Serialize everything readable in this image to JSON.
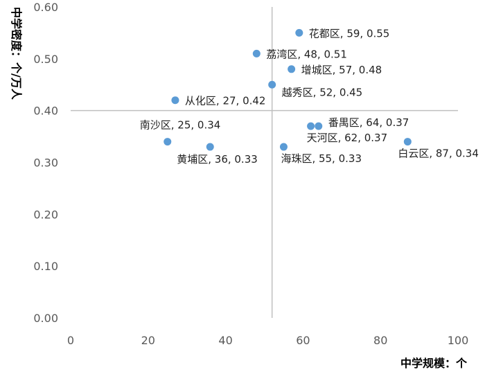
{
  "chart_data": {
    "type": "scatter",
    "xlabel": "中学规模：个",
    "ylabel": "中学密度：个/万人",
    "xlim": [
      0,
      100
    ],
    "ylim": [
      0,
      0.6
    ],
    "x_ticks": [
      "0",
      "20",
      "40",
      "60",
      "80",
      "100"
    ],
    "y_ticks": [
      "0.00",
      "0.10",
      "0.20",
      "0.30",
      "0.40",
      "0.50",
      "0.60"
    ],
    "grid": false,
    "reference_lines": {
      "x": 52,
      "y": 0.4
    },
    "colors": {
      "point": "#5b9bd5",
      "reference_line": "#bfbfbf"
    },
    "points": [
      {
        "name": "花都区",
        "x": 59,
        "y": 0.55,
        "label": "花都区, 59, 0.55"
      },
      {
        "name": "荔湾区",
        "x": 48,
        "y": 0.51,
        "label": "荔湾区, 48, 0.51"
      },
      {
        "name": "增城区",
        "x": 57,
        "y": 0.48,
        "label": "增城区, 57, 0.48"
      },
      {
        "name": "越秀区",
        "x": 52,
        "y": 0.45,
        "label": "越秀区, 52, 0.45"
      },
      {
        "name": "从化区",
        "x": 27,
        "y": 0.42,
        "label": "从化区, 27, 0.42"
      },
      {
        "name": "番禺区",
        "x": 64,
        "y": 0.37,
        "label": "番禺区, 64, 0.37"
      },
      {
        "name": "天河区",
        "x": 62,
        "y": 0.37,
        "label": "天河区, 62, 0.37"
      },
      {
        "name": "南沙区",
        "x": 25,
        "y": 0.34,
        "label": "南沙区, 25, 0.34"
      },
      {
        "name": "白云区",
        "x": 87,
        "y": 0.34,
        "label": "白云区, 87, 0.34"
      },
      {
        "name": "黄埔区",
        "x": 36,
        "y": 0.33,
        "label": "黄埔区, 36, 0.33"
      },
      {
        "name": "海珠区",
        "x": 55,
        "y": 0.33,
        "label": "海珠区, 55, 0.33"
      }
    ]
  }
}
